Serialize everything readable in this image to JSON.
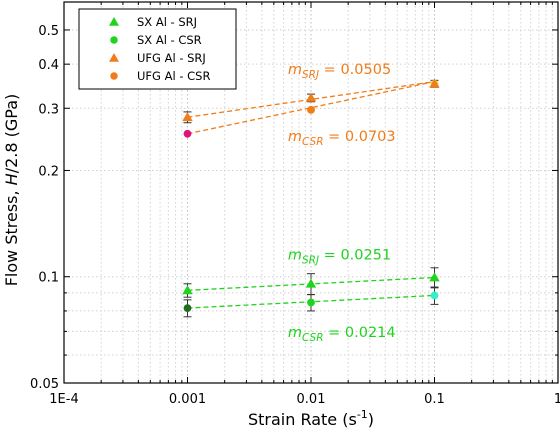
{
  "chart_data": {
    "type": "scatter",
    "x_scale": "log",
    "y_scale": "log",
    "xlim": [
      0.0001,
      1
    ],
    "ylim": [
      0.05,
      0.6
    ],
    "xlabel": "Strain Rate (s",
    "xlabel_sup": "-1",
    "xlabel_close": ")",
    "ylabel_prefix": "Flow Stress, ",
    "ylabel_italic": "H",
    "ylabel_suffix": "/2.8 (GPa)",
    "x_ticks": [
      {
        "value": 0.0001,
        "label": "1E-4"
      },
      {
        "value": 0.001,
        "label": "0.001"
      },
      {
        "value": 0.01,
        "label": "0.01"
      },
      {
        "value": 0.1,
        "label": "0.1"
      },
      {
        "value": 1,
        "label": "1"
      }
    ],
    "y_ticks": [
      {
        "value": 0.05,
        "label": "0.05"
      },
      {
        "value": 0.1,
        "label": "0.1"
      },
      {
        "value": 0.2,
        "label": "0.2"
      },
      {
        "value": 0.3,
        "label": "0.3"
      },
      {
        "value": 0.4,
        "label": "0.4"
      },
      {
        "value": 0.5,
        "label": "0.5"
      }
    ],
    "grid": true,
    "legend_position": "top-left",
    "series": [
      {
        "name": "SX Al - SRJ",
        "marker": "triangle",
        "color": "#1fd31f",
        "x": [
          0.001,
          0.01,
          0.1
        ],
        "y": [
          0.0915,
          0.0955,
          0.0995
        ],
        "err": [
          0.004,
          0.0065,
          0.0065
        ],
        "point_colors": [
          "#1fd31f",
          "#1fd31f",
          "#1fd31f"
        ]
      },
      {
        "name": "SX Al - CSR",
        "marker": "circle",
        "color": "#1fd31f",
        "x": [
          0.001,
          0.01,
          0.1
        ],
        "y": [
          0.0815,
          0.0845,
          0.0885
        ],
        "err": [
          0.0045,
          0.0045,
          0.005
        ],
        "point_colors": [
          "#1f6e1f",
          "#1fd31f",
          "#33f0c8"
        ]
      },
      {
        "name": "UFG Al - SRJ",
        "marker": "triangle",
        "color": "#f07d1a",
        "x": [
          0.001,
          0.01,
          0.1
        ],
        "y": [
          0.283,
          0.321,
          0.352
        ],
        "err": [
          0.01,
          0.008,
          0.008
        ],
        "point_colors": [
          "#f07d1a",
          "#f07d1a",
          "#f07d1a"
        ]
      },
      {
        "name": "UFG Al - CSR",
        "marker": "circle",
        "color": "#f07d1a",
        "x": [
          0.001,
          0.01,
          0.1
        ],
        "y": [
          0.254,
          0.297,
          0.352
        ],
        "err": [
          0,
          0,
          0
        ],
        "point_colors": [
          "#e0127a",
          "#f07d1a",
          "#f2d23a"
        ]
      }
    ],
    "fit_lines": [
      {
        "color": "#f07d1a",
        "x": [
          0.001,
          0.1
        ],
        "y": [
          0.283,
          0.357
        ]
      },
      {
        "color": "#f07d1a",
        "x": [
          0.001,
          0.1
        ],
        "y": [
          0.254,
          0.357
        ]
      },
      {
        "color": "#1fd31f",
        "x": [
          0.001,
          0.1
        ],
        "y": [
          0.0915,
          0.0995
        ]
      },
      {
        "color": "#1fd31f",
        "x": [
          0.001,
          0.1
        ],
        "y": [
          0.0815,
          0.0885
        ]
      }
    ],
    "annotations": [
      {
        "id": "ufg-srj",
        "color": "#f07d1a",
        "m": "m",
        "sub": "SRJ",
        "text": " = 0.0505",
        "x": 0.0065,
        "y": 0.375
      },
      {
        "id": "ufg-csr",
        "color": "#f07d1a",
        "m": "m",
        "sub": "CSR",
        "text": " = 0.0703",
        "x": 0.0065,
        "y": 0.242
      },
      {
        "id": "sx-srj",
        "color": "#1fd31f",
        "m": "m",
        "sub": "SRJ",
        "text": " = 0.0251",
        "x": 0.0065,
        "y": 0.112
      },
      {
        "id": "sx-csr",
        "color": "#1fd31f",
        "m": "m",
        "sub": "CSR",
        "text": " = 0.0214",
        "x": 0.0065,
        "y": 0.0675
      }
    ]
  }
}
